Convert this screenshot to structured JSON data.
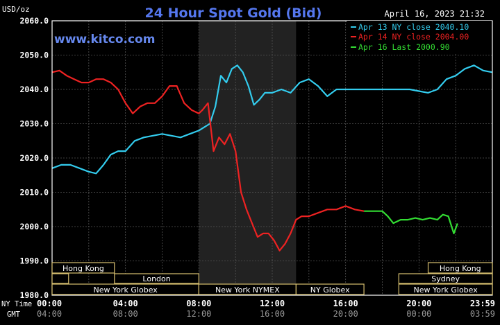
{
  "title": "24 Hour Spot Gold (Bid)",
  "unit_label": "USD/oz",
  "timestamp": "April 16, 2023 21:32",
  "watermark": "www.kitco.com",
  "legend": [
    {
      "label": "Apr 13 NY close 2040.10",
      "color": "#33ccee"
    },
    {
      "label": "Apr 14 NY close 2004.00",
      "color": "#ee2222"
    },
    {
      "label": "Apr 16 Last 2000.90",
      "color": "#33dd33"
    }
  ],
  "axis_row_labels": {
    "ny": "NY Time",
    "gmt": "GMT"
  },
  "market_bars": [
    {
      "label": "Hong Kong",
      "start": 0,
      "end": 3.4
    },
    {
      "label": "London",
      "start": 0,
      "end": 0.9
    },
    {
      "label": "London",
      "start": 3.4,
      "end": 8.0
    },
    {
      "label": "New York Globex",
      "start": 0,
      "end": 8.0
    },
    {
      "label": "New York NYMEX",
      "start": 8.0,
      "end": 13.3
    },
    {
      "label": "NY Globex",
      "start": 13.3,
      "end": 17.0
    },
    {
      "label": "Hong Kong",
      "start": 20.5,
      "end": 24.0
    },
    {
      "label": "Sydney",
      "start": 18.9,
      "end": 24.0
    },
    {
      "label": "New York Globex",
      "start": 18.9,
      "end": 24.0
    }
  ],
  "chart_data": {
    "type": "line",
    "title": "24 Hour Spot Gold (Bid)",
    "ylabel": "USD/oz",
    "ylim": [
      1980,
      2060
    ],
    "yticks": [
      "1980.0",
      "1990.0",
      "2000.0",
      "2010.0",
      "2020.0",
      "2030.0",
      "2040.0",
      "2050.0",
      "2060.0"
    ],
    "xlim": [
      0,
      24
    ],
    "xticks_ny": [
      "00:00",
      "04:00",
      "08:00",
      "12:00",
      "16:00",
      "20:00",
      "23:59"
    ],
    "xticks_gmt": [
      "04:00",
      "08:00",
      "12:00",
      "16:00",
      "20:00",
      "00:00",
      "03:59"
    ],
    "grid": true,
    "shaded_hours": [
      8.0,
      13.3
    ],
    "series": [
      {
        "name": "Apr 13 NY close 2040.10",
        "color": "#33ccee",
        "x": [
          0,
          0.5,
          1,
          1.5,
          2,
          2.4,
          2.8,
          3.2,
          3.6,
          4,
          4.5,
          5,
          5.5,
          6,
          6.5,
          7,
          7.5,
          8,
          8.3,
          8.6,
          8.9,
          9.2,
          9.5,
          9.8,
          10.1,
          10.4,
          10.7,
          11,
          11.3,
          11.6,
          12,
          12.5,
          13,
          13.5,
          14,
          14.5,
          15,
          15.5,
          16,
          16.5,
          17,
          17.5,
          18,
          18.5,
          19,
          19.5,
          20,
          20.5,
          21,
          21.5,
          22,
          22.5,
          23,
          23.5,
          24
        ],
        "y": [
          2017,
          2018,
          2018,
          2017,
          2016,
          2015.5,
          2018,
          2021,
          2022,
          2022,
          2025,
          2026,
          2026.5,
          2027,
          2026.5,
          2026,
          2027,
          2028,
          2029,
          2030,
          2035,
          2044,
          2042,
          2046,
          2047,
          2045,
          2041,
          2035.5,
          2037,
          2039,
          2039,
          2040,
          2039,
          2042,
          2043,
          2041,
          2038,
          2040,
          2040,
          2040,
          2040,
          2040,
          2040,
          2040,
          2040,
          2040,
          2039.5,
          2039,
          2040,
          2043,
          2044,
          2046,
          2047,
          2045.5,
          2045
        ]
      },
      {
        "name": "Apr 14 NY close 2004.00",
        "color": "#ee2222",
        "x": [
          0,
          0.4,
          0.8,
          1.2,
          1.6,
          2,
          2.4,
          2.8,
          3.2,
          3.6,
          4,
          4.4,
          4.8,
          5.2,
          5.6,
          6,
          6.4,
          6.8,
          7.2,
          7.6,
          8,
          8.2,
          8.5,
          8.8,
          9.1,
          9.4,
          9.7,
          10,
          10.3,
          10.6,
          10.9,
          11.2,
          11.5,
          11.8,
          12.1,
          12.4,
          12.7,
          13,
          13.3,
          13.6,
          14,
          14.5,
          15,
          15.5,
          16,
          16.5,
          17
        ],
        "y": [
          2045,
          2045.5,
          2044,
          2043,
          2042,
          2042,
          2043,
          2043,
          2042,
          2040,
          2036,
          2033,
          2035,
          2036,
          2036,
          2038,
          2041,
          2041,
          2036,
          2034,
          2033,
          2034,
          2036,
          2022,
          2026,
          2024,
          2027,
          2022,
          2010,
          2005,
          2001,
          1997,
          1998,
          1998,
          1996,
          1993,
          1995,
          1998,
          2002,
          2003,
          2003,
          2004,
          2005,
          2005,
          2006,
          2005,
          2004.5
        ]
      },
      {
        "name": "Apr 16 Last 2000.90",
        "color": "#33dd33",
        "x": [
          17,
          17.5,
          18,
          18.3,
          18.6,
          19,
          19.4,
          19.8,
          20.2,
          20.6,
          21,
          21.3,
          21.6,
          21.9,
          22.1
        ],
        "y": [
          2004.5,
          2004.5,
          2004.5,
          2003,
          2001,
          2002,
          2002,
          2002.5,
          2002,
          2002.5,
          2002,
          2003.5,
          2003,
          1998,
          2000.9
        ]
      }
    ]
  }
}
